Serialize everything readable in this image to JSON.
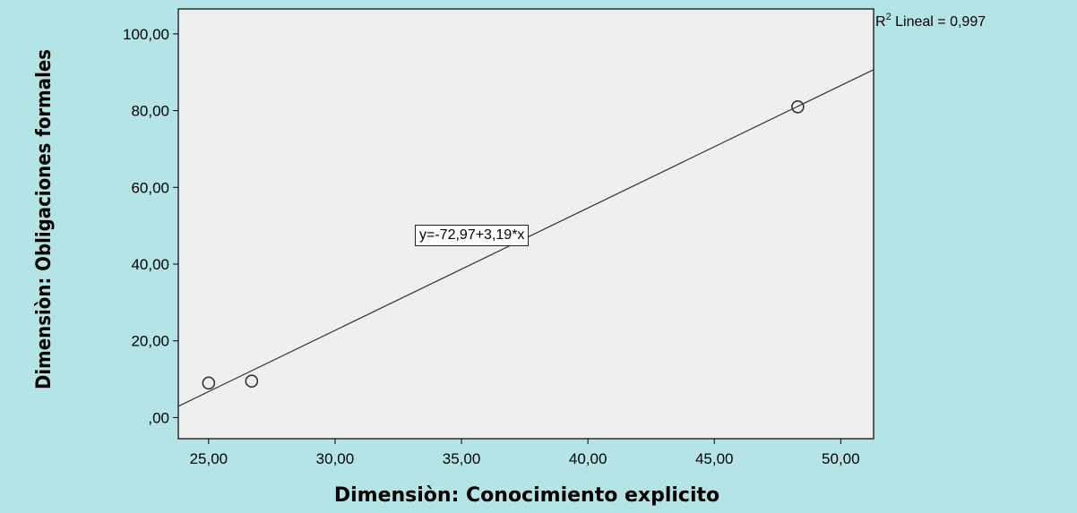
{
  "chart_data": {
    "type": "scatter",
    "title": "",
    "xlabel": "Dimensiòn: Conocimiento explicito",
    "ylabel": "Dimensiòn: Obligaciones formales",
    "xlim": [
      23.8,
      51.3
    ],
    "ylim": [
      -5.5,
      106.5
    ],
    "x_ticks": [
      {
        "value": 25,
        "label": "25,00"
      },
      {
        "value": 30,
        "label": "30,00"
      },
      {
        "value": 35,
        "label": "35,00"
      },
      {
        "value": 40,
        "label": "40,00"
      },
      {
        "value": 45,
        "label": "45,00"
      },
      {
        "value": 50,
        "label": "50,00"
      }
    ],
    "y_ticks": [
      {
        "value": 0,
        "label": ",00"
      },
      {
        "value": 20,
        "label": "20,00"
      },
      {
        "value": 40,
        "label": "40,00"
      },
      {
        "value": 60,
        "label": "60,00"
      },
      {
        "value": 80,
        "label": "80,00"
      },
      {
        "value": 100,
        "label": "100,00"
      }
    ],
    "points": [
      {
        "x": 25.0,
        "y": 9.0
      },
      {
        "x": 26.7,
        "y": 9.5
      },
      {
        "x": 48.3,
        "y": 81.0
      }
    ],
    "fit_line": {
      "intercept": -72.97,
      "slope": 3.19,
      "label": "y=-72,97+3,19*x"
    },
    "r2_label": {
      "prefix": "R",
      "sup": "2",
      "text": " Lineal = 0,997"
    },
    "grid": false,
    "colors": {
      "outer_background": "#b4e4e6",
      "plot_background": "#efefef",
      "line": "#333333",
      "marker": "#333333"
    }
  }
}
